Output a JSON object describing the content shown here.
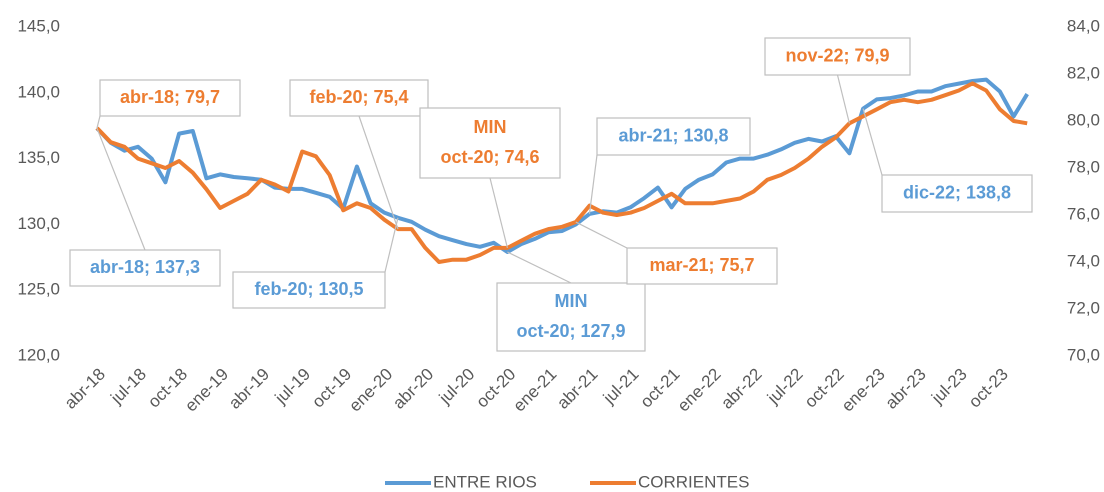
{
  "chart_data": {
    "type": "line",
    "categories": [
      "abr-18",
      null,
      null,
      "jul-18",
      null,
      null,
      "oct-18",
      null,
      null,
      "ene-19",
      null,
      null,
      "abr-19",
      null,
      null,
      "jul-19",
      null,
      null,
      "oct-19",
      null,
      null,
      "ene-20",
      null,
      null,
      "abr-20",
      null,
      null,
      "jul-20",
      null,
      null,
      "oct-20",
      null,
      null,
      "ene-21",
      null,
      null,
      "abr-21",
      null,
      null,
      "jul-21",
      null,
      null,
      "oct-21",
      null,
      null,
      "ene-22",
      null,
      null,
      "abr-22",
      null,
      null,
      "jul-22",
      null,
      null,
      "oct-22",
      null,
      null,
      "ene-23",
      null,
      null,
      "abr-23",
      null,
      null,
      "jul-23",
      null,
      null,
      "oct-23",
      null,
      null
    ],
    "series": [
      {
        "name": "ENTRE RIOS",
        "color": "#5b9bd5",
        "values": [
          137.3,
          136.2,
          135.6,
          135.9,
          135.0,
          133.2,
          136.9,
          137.1,
          133.5,
          133.8,
          133.6,
          133.5,
          133.4,
          132.8,
          132.7,
          132.7,
          132.4,
          132.1,
          131.2,
          134.4,
          131.6,
          130.9,
          130.5,
          130.2,
          129.6,
          129.1,
          128.8,
          128.5,
          128.3,
          128.6,
          127.9,
          128.5,
          128.9,
          129.4,
          129.5,
          130.0,
          130.8,
          131.0,
          130.9,
          131.3,
          132.0,
          132.8,
          131.3,
          132.7,
          133.4,
          133.8,
          134.7,
          135.0,
          135.0,
          135.3,
          135.7,
          136.2,
          136.5,
          136.3,
          136.7,
          135.4,
          138.8,
          139.5,
          139.6,
          139.8,
          140.1,
          140.1,
          140.5,
          140.7,
          140.9,
          141.0,
          140.1,
          138.2,
          139.9
        ]
      },
      {
        "name": "CORRIENTES",
        "color": "#ed7d31",
        "axis": "y2",
        "values": [
          79.7,
          79.1,
          78.9,
          78.4,
          78.2,
          78.0,
          78.3,
          77.8,
          77.1,
          76.3,
          76.6,
          76.9,
          77.5,
          77.3,
          77.0,
          78.7,
          78.5,
          77.7,
          76.2,
          76.5,
          76.3,
          75.8,
          75.4,
          75.4,
          74.6,
          74.0,
          74.1,
          74.1,
          74.3,
          74.6,
          74.6,
          74.9,
          75.2,
          75.4,
          75.5,
          75.7,
          76.4,
          76.1,
          76.0,
          76.1,
          76.3,
          76.6,
          76.9,
          76.5,
          76.5,
          76.5,
          76.6,
          76.7,
          77.0,
          77.5,
          77.7,
          78.0,
          78.4,
          78.9,
          79.3,
          79.9,
          80.2,
          80.5,
          80.8,
          80.9,
          80.8,
          80.9,
          81.1,
          81.3,
          81.6,
          81.3,
          80.5,
          80.0,
          79.9
        ]
      }
    ],
    "ylim": [
      120,
      145
    ],
    "yticks": [
      {
        "value": 120,
        "label": "120,0"
      },
      {
        "value": 125,
        "label": "125,0"
      },
      {
        "value": 130,
        "label": "130,0"
      },
      {
        "value": 135,
        "label": "135,0"
      },
      {
        "value": 140,
        "label": "140,0"
      },
      {
        "value": 145,
        "label": "145,0"
      }
    ],
    "y2lim": [
      70,
      84
    ],
    "y2ticks": [
      {
        "value": 70,
        "label": "70,0"
      },
      {
        "value": 72,
        "label": "72,0"
      },
      {
        "value": 74,
        "label": "74,0"
      },
      {
        "value": 76,
        "label": "76,0"
      },
      {
        "value": 78,
        "label": "78,0"
      },
      {
        "value": 80,
        "label": "80,0"
      },
      {
        "value": 82,
        "label": "82,0"
      },
      {
        "value": 84,
        "label": "84,0"
      }
    ],
    "grid": false,
    "legend": "bottom",
    "annotations": [
      [
        "abr-18; 79,7"
      ],
      [
        "abr-18; 137,3"
      ],
      [
        "feb-20; 75,4"
      ],
      [
        "feb-20; 130,5"
      ],
      [
        "MIN",
        "oct-20; 74,6"
      ],
      [
        "MIN",
        "oct-20; 127,9"
      ],
      [
        "abr-21; 130,8"
      ],
      [
        "mar-21; 75,7"
      ],
      [
        "nov-22; 79,9"
      ],
      [
        "dic-22; 138,8"
      ]
    ]
  }
}
